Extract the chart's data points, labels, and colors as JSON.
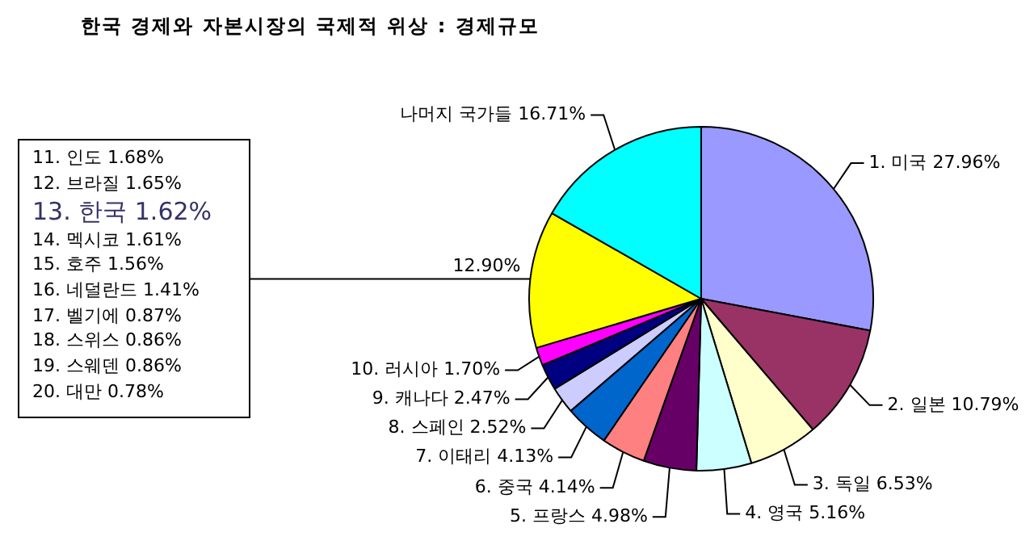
{
  "chart_data": {
    "type": "pie",
    "title": "한국 경제와 자본시장의 국제적 위상 : 경제규모",
    "categories": [
      "1. 미국",
      "2. 일본",
      "3. 독일",
      "4. 영국",
      "5. 프랑스",
      "6. 중국",
      "7. 이태리",
      "8. 스페인",
      "9. 캐나다",
      "10. 러시아",
      null,
      "나머지 국가들"
    ],
    "values": [
      27.96,
      10.79,
      6.53,
      5.16,
      4.98,
      4.14,
      4.13,
      2.52,
      2.47,
      1.7,
      12.9,
      16.71
    ],
    "value_labels": [
      "27.96%",
      "10.79%",
      "6.53%",
      "5.16%",
      "4.98%",
      "4.14%",
      "4.13%",
      "2.52%",
      "2.47%",
      "1.70%",
      "12.90%",
      "16.71%"
    ],
    "colors": [
      "#9999ff",
      "#993366",
      "#ffffcc",
      "#ccffff",
      "#660066",
      "#ff8080",
      "#0066cc",
      "#ccccff",
      "#000080",
      "#ff00ff",
      "#ffff00",
      "#00ffff"
    ],
    "legend": false,
    "annotations": [
      "11. 인도 1.68%",
      "12. 브라질 1.65%",
      "13. 한국 1.62%",
      "14. 멕시코 1.61%",
      "15. 호주 1.56%",
      "16. 네덜란드 1.41%",
      "17. 벨기에 0.87%",
      "18. 스위스 0.86%",
      "19. 스웨덴 0.86%",
      "20. 대만 0.78%"
    ]
  }
}
